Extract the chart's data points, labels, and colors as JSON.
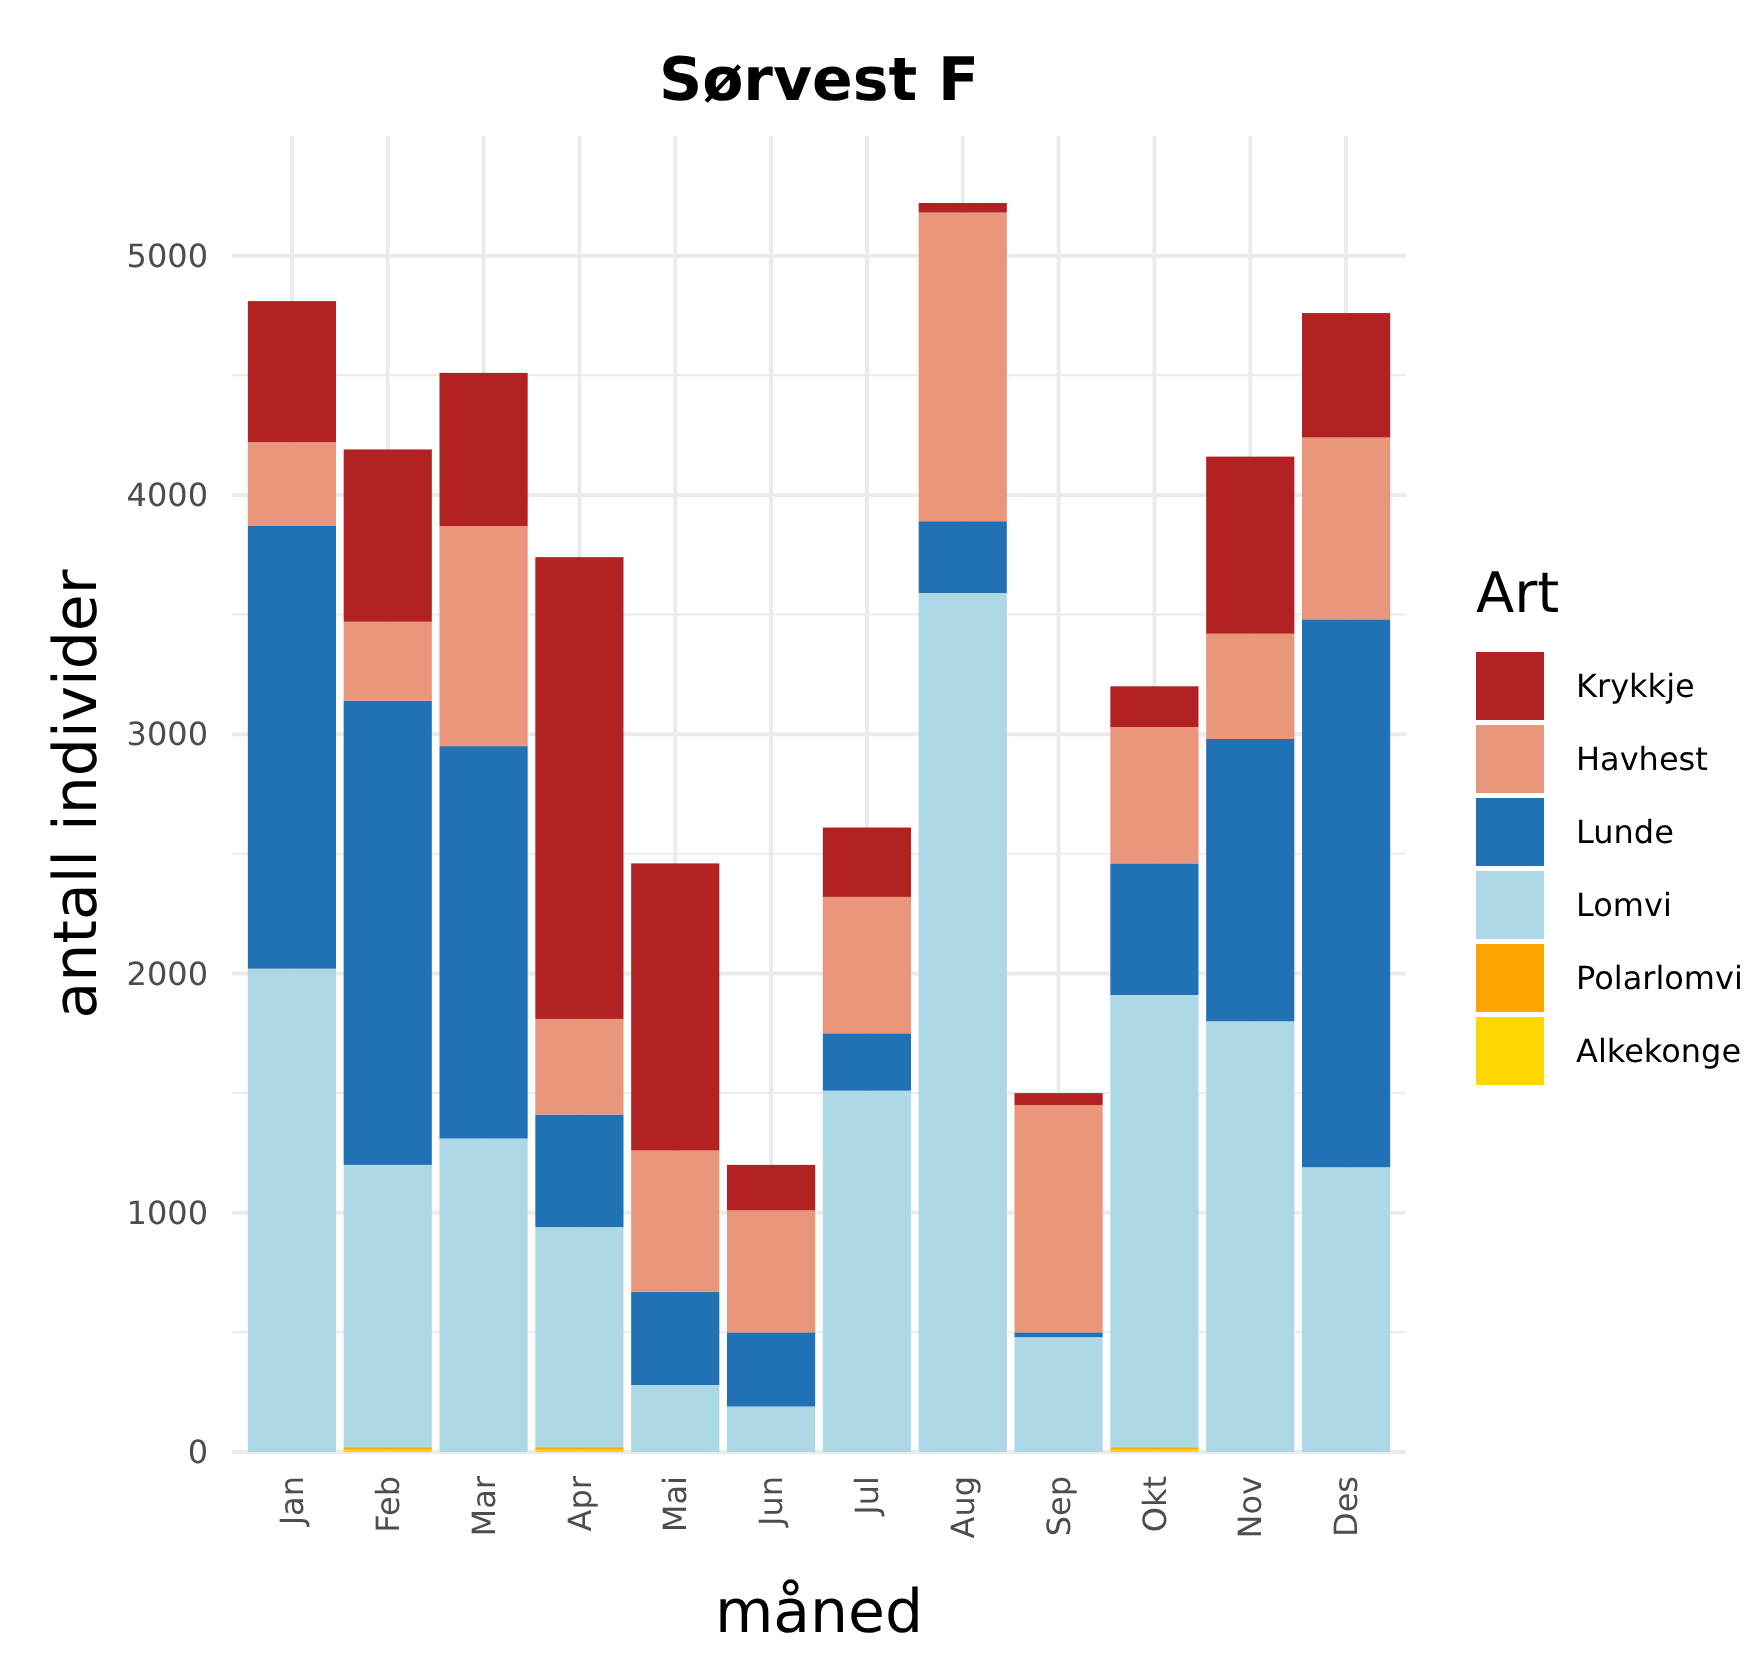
{
  "chart_data": {
    "type": "bar",
    "title": "Sørvest F",
    "xlabel": "måned",
    "ylabel": "antall individer",
    "legend_title": "Art",
    "stacked": true,
    "grid": true,
    "legend": "right",
    "categories": [
      "Jan",
      "Feb",
      "Mar",
      "Apr",
      "Mai",
      "Jun",
      "Jul",
      "Aug",
      "Sep",
      "Okt",
      "Nov",
      "Des"
    ],
    "ylim": [
      0,
      5500
    ],
    "yticks": [
      0,
      {
        "value": 500,
        "label": null
      },
      1000,
      {
        "value": 1500,
        "label": null
      },
      2000,
      {
        "value": 2500,
        "label": null
      },
      3000,
      {
        "value": 3500,
        "label": null
      },
      4000,
      {
        "value": 4500,
        "label": null
      },
      5000
    ],
    "series": [
      {
        "name": "Alkekonge",
        "color": "#ffd700",
        "values": [
          0,
          10,
          0,
          10,
          0,
          0,
          0,
          0,
          0,
          10,
          0,
          0
        ]
      },
      {
        "name": "Polarlomvi",
        "color": "#ffa500",
        "values": [
          0,
          10,
          0,
          10,
          0,
          0,
          0,
          0,
          0,
          10,
          0,
          0
        ]
      },
      {
        "name": "Lomvi",
        "color": "#add8e6",
        "values": [
          2020,
          1180,
          1310,
          920,
          280,
          190,
          1510,
          3590,
          480,
          1890,
          1800,
          1190
        ]
      },
      {
        "name": "Lunde",
        "color": "#2171b5",
        "values": [
          1850,
          1940,
          1640,
          470,
          390,
          310,
          240,
          300,
          20,
          550,
          1180,
          2290
        ]
      },
      {
        "name": "Havhest",
        "color": "#e9967a",
        "values": [
          350,
          330,
          920,
          400,
          590,
          510,
          570,
          1290,
          950,
          570,
          440,
          760
        ]
      },
      {
        "name": "Krykkje",
        "color": "#b22222",
        "values": [
          590,
          720,
          640,
          1930,
          1200,
          190,
          290,
          40,
          50,
          170,
          740,
          520
        ]
      }
    ]
  }
}
